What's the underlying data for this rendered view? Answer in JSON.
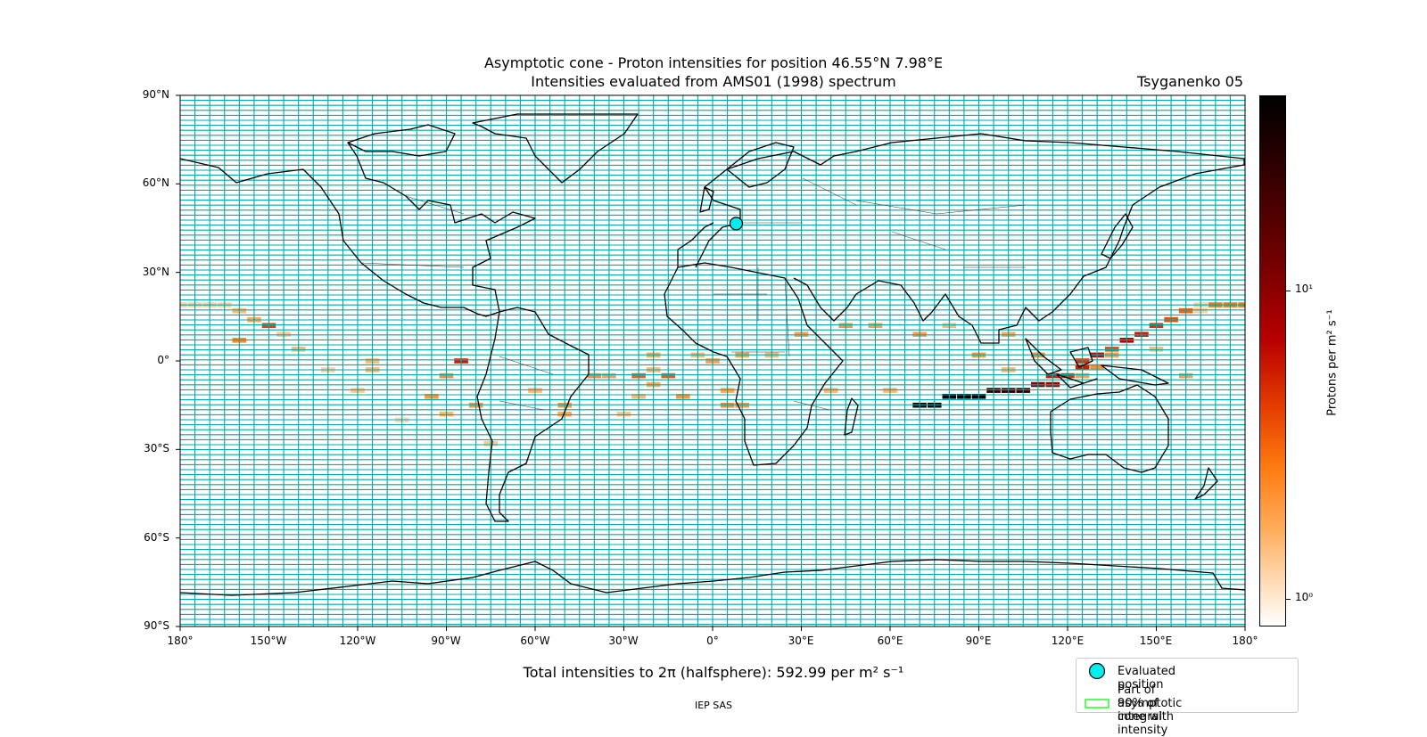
{
  "title_line1": "Asymptotic cone - Proton intensities for position 46.55°N 7.98°E",
  "title_line2": "Intensities evaluated from AMS01 (1998) spectrum",
  "model_label": "Tsyganenko 05",
  "total_label": "Total intensities to 2π (halfsphere): 592.99 per m² s⁻¹",
  "footer": "IEP SAS",
  "lat_ticks": [
    "90°N",
    "60°N",
    "30°N",
    "0°",
    "30°S",
    "60°S",
    "90°S"
  ],
  "lon_ticks": [
    "180°",
    "150°W",
    "120°W",
    "90°W",
    "60°W",
    "30°W",
    "0°",
    "30°E",
    "60°E",
    "90°E",
    "120°E",
    "150°E",
    "180°"
  ],
  "colorbar": {
    "label": "Protons per m² s⁻¹",
    "ticks": [
      "10¹",
      "10⁰"
    ],
    "scale": "log",
    "range": [
      0.85,
      50
    ]
  },
  "legend": {
    "evaluated_position": "Evaluated position",
    "cone_label_line1": "Part of asymptotic cone with",
    "cone_label_line2": "90% of integral intensity"
  },
  "colors": {
    "grid": "#00a8a8",
    "marker": "#00eeee",
    "cone_outline": "#00ff00"
  },
  "chart_data": {
    "type": "map",
    "evaluated_position": {
      "lat": 46.55,
      "lon": 7.98
    },
    "lon_range": [
      -180,
      180
    ],
    "lat_range": [
      -90,
      90
    ],
    "cells": [
      {
        "lon": -180,
        "lat": 19,
        "v": 1.3
      },
      {
        "lon": -175,
        "lat": 19,
        "v": 1.3
      },
      {
        "lon": -170,
        "lat": 19,
        "v": 1.3
      },
      {
        "lon": -165,
        "lat": 19,
        "v": 1.3
      },
      {
        "lon": -160,
        "lat": 17,
        "v": 1.6
      },
      {
        "lon": -155,
        "lat": 14,
        "v": 1.8
      },
      {
        "lon": -150,
        "lat": 12,
        "v": 4.5
      },
      {
        "lon": -145,
        "lat": 9,
        "v": 1.4
      },
      {
        "lon": -140,
        "lat": 4,
        "v": 1.6
      },
      {
        "lon": -160,
        "lat": 7,
        "v": 2.5
      },
      {
        "lon": -130,
        "lat": -3,
        "v": 1.3
      },
      {
        "lon": -115,
        "lat": 0,
        "v": 1.6
      },
      {
        "lon": -115,
        "lat": -3,
        "v": 1.6
      },
      {
        "lon": -120,
        "lat": -10,
        "v": 1.4
      },
      {
        "lon": -105,
        "lat": -20,
        "v": 1.2
      },
      {
        "lon": -95,
        "lat": -12,
        "v": 2.2
      },
      {
        "lon": -90,
        "lat": -5,
        "v": 2.4
      },
      {
        "lon": -90,
        "lat": -18,
        "v": 1.6
      },
      {
        "lon": -85,
        "lat": 0,
        "v": 6.0
      },
      {
        "lon": -80,
        "lat": -15,
        "v": 2.2
      },
      {
        "lon": -75,
        "lat": -28,
        "v": 1.4
      },
      {
        "lon": -60,
        "lat": -10,
        "v": 1.6
      },
      {
        "lon": -50,
        "lat": -15,
        "v": 2.2
      },
      {
        "lon": -50,
        "lat": -18,
        "v": 1.8
      },
      {
        "lon": -40,
        "lat": -5,
        "v": 2.4
      },
      {
        "lon": -35,
        "lat": -5,
        "v": 2.0
      },
      {
        "lon": -30,
        "lat": -18,
        "v": 1.4
      },
      {
        "lon": -25,
        "lat": -5,
        "v": 3.5
      },
      {
        "lon": -25,
        "lat": -12,
        "v": 1.6
      },
      {
        "lon": -20,
        "lat": 2,
        "v": 1.8
      },
      {
        "lon": -20,
        "lat": -3,
        "v": 1.6
      },
      {
        "lon": -20,
        "lat": -8,
        "v": 1.8
      },
      {
        "lon": -15,
        "lat": -5,
        "v": 3.6
      },
      {
        "lon": -10,
        "lat": -12,
        "v": 2.2
      },
      {
        "lon": -5,
        "lat": 2,
        "v": 1.6
      },
      {
        "lon": 0,
        "lat": 0,
        "v": 2.0
      },
      {
        "lon": 5,
        "lat": -10,
        "v": 1.8
      },
      {
        "lon": 5,
        "lat": -15,
        "v": 2.4
      },
      {
        "lon": 10,
        "lat": -15,
        "v": 2.2
      },
      {
        "lon": 10,
        "lat": 2,
        "v": 2.0
      },
      {
        "lon": 20,
        "lat": 2,
        "v": 1.6
      },
      {
        "lon": 30,
        "lat": 9,
        "v": 2.0
      },
      {
        "lon": 40,
        "lat": -10,
        "v": 1.6
      },
      {
        "lon": 45,
        "lat": 12,
        "v": 2.2
      },
      {
        "lon": 55,
        "lat": 12,
        "v": 2.0
      },
      {
        "lon": 60,
        "lat": -10,
        "v": 1.6
      },
      {
        "lon": 70,
        "lat": 9,
        "v": 2.0
      },
      {
        "lon": 70,
        "lat": -15,
        "v": 50
      },
      {
        "lon": 75,
        "lat": -15,
        "v": 50
      },
      {
        "lon": 80,
        "lat": -12,
        "v": 50
      },
      {
        "lon": 85,
        "lat": -12,
        "v": 50
      },
      {
        "lon": 90,
        "lat": -12,
        "v": 50
      },
      {
        "lon": 80,
        "lat": 12,
        "v": 1.6
      },
      {
        "lon": 90,
        "lat": 2,
        "v": 2.2
      },
      {
        "lon": 95,
        "lat": -10,
        "v": 30
      },
      {
        "lon": 100,
        "lat": -10,
        "v": 30
      },
      {
        "lon": 105,
        "lat": -10,
        "v": 30
      },
      {
        "lon": 100,
        "lat": -3,
        "v": 1.6
      },
      {
        "lon": 100,
        "lat": 9,
        "v": 1.8
      },
      {
        "lon": 110,
        "lat": -8,
        "v": 12
      },
      {
        "lon": 115,
        "lat": -8,
        "v": 9
      },
      {
        "lon": 115,
        "lat": -5,
        "v": 6
      },
      {
        "lon": 120,
        "lat": -5,
        "v": 5
      },
      {
        "lon": 110,
        "lat": 2,
        "v": 2.4
      },
      {
        "lon": 125,
        "lat": -5,
        "v": 2.0
      },
      {
        "lon": 125,
        "lat": -2,
        "v": 6
      },
      {
        "lon": 125,
        "lat": 0,
        "v": 5
      },
      {
        "lon": 130,
        "lat": 2,
        "v": 7
      },
      {
        "lon": 130,
        "lat": -2,
        "v": 2.4
      },
      {
        "lon": 135,
        "lat": 4,
        "v": 4
      },
      {
        "lon": 135,
        "lat": 2,
        "v": 2.0
      },
      {
        "lon": 140,
        "lat": 7,
        "v": 8
      },
      {
        "lon": 145,
        "lat": 9,
        "v": 6
      },
      {
        "lon": 150,
        "lat": 12,
        "v": 5
      },
      {
        "lon": 150,
        "lat": 4,
        "v": 1.6
      },
      {
        "lon": 155,
        "lat": 14,
        "v": 4
      },
      {
        "lon": 160,
        "lat": 17,
        "v": 3.5
      },
      {
        "lon": 160,
        "lat": -5,
        "v": 2.0
      },
      {
        "lon": 165,
        "lat": 19,
        "v": 1.3
      },
      {
        "lon": 165,
        "lat": 17,
        "v": 1.3
      },
      {
        "lon": 170,
        "lat": 19,
        "v": 3.0
      },
      {
        "lon": 175,
        "lat": 19,
        "v": 3.0
      },
      {
        "lon": 180,
        "lat": 19,
        "v": 3.0
      }
    ]
  }
}
